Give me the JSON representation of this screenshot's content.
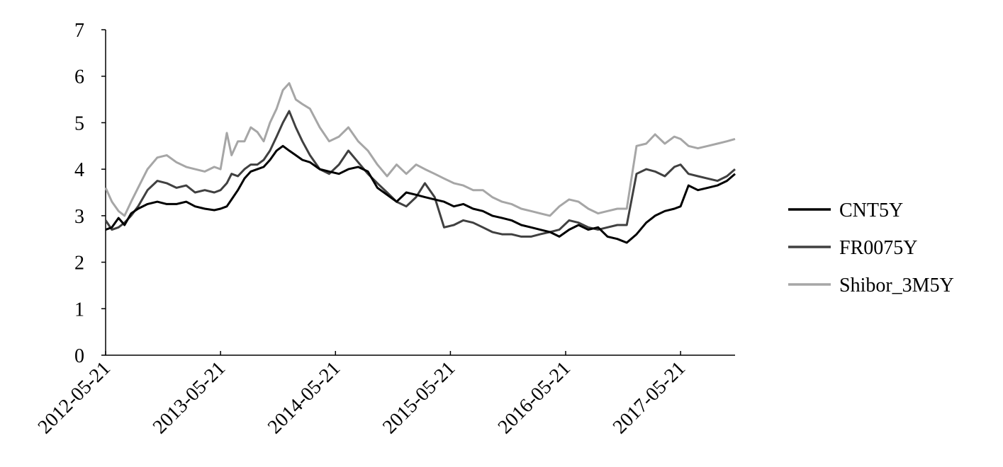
{
  "chart_data": {
    "type": "line",
    "title": "",
    "xlabel": "",
    "ylabel": "",
    "ylim": [
      0,
      7
    ],
    "yticks": [
      0,
      1,
      2,
      3,
      4,
      5,
      6,
      7
    ],
    "xlim": [
      "2012-05-21",
      "2017-11-10"
    ],
    "xticks": [
      "2012-05-21",
      "2013-05-21",
      "2014-05-21",
      "2015-05-21",
      "2016-05-21",
      "2017-05-21"
    ],
    "grid": false,
    "legend": "right",
    "series": [
      {
        "name": "CNT5Y",
        "color": "#000000",
        "x": [
          "2012-05-21",
          "2012-06-10",
          "2012-07-01",
          "2012-07-20",
          "2012-08-10",
          "2012-09-01",
          "2012-10-01",
          "2012-11-01",
          "2012-12-01",
          "2013-01-01",
          "2013-02-01",
          "2013-03-01",
          "2013-04-01",
          "2013-05-01",
          "2013-05-21",
          "2013-06-10",
          "2013-06-25",
          "2013-07-15",
          "2013-08-05",
          "2013-08-25",
          "2013-09-15",
          "2013-10-05",
          "2013-10-25",
          "2013-11-15",
          "2013-12-05",
          "2013-12-25",
          "2014-01-15",
          "2014-02-05",
          "2014-03-01",
          "2014-04-01",
          "2014-05-01",
          "2014-06-01",
          "2014-07-01",
          "2014-08-01",
          "2014-09-01",
          "2014-10-01",
          "2014-11-01",
          "2014-12-01",
          "2015-01-01",
          "2015-02-01",
          "2015-03-01",
          "2015-04-01",
          "2015-05-01",
          "2015-06-01",
          "2015-07-01",
          "2015-08-01",
          "2015-09-01",
          "2015-10-01",
          "2015-11-01",
          "2015-12-01",
          "2016-01-01",
          "2016-02-01",
          "2016-03-01",
          "2016-04-01",
          "2016-05-01",
          "2016-06-01",
          "2016-07-01",
          "2016-08-01",
          "2016-09-01",
          "2016-10-01",
          "2016-11-01",
          "2016-12-01",
          "2017-01-01",
          "2017-02-01",
          "2017-03-01",
          "2017-04-01",
          "2017-05-01",
          "2017-05-21",
          "2017-06-15",
          "2017-07-15",
          "2017-08-15",
          "2017-09-15",
          "2017-10-15",
          "2017-11-10"
        ],
        "values": [
          2.7,
          2.75,
          2.95,
          2.8,
          3.05,
          3.15,
          3.25,
          3.3,
          3.25,
          3.25,
          3.3,
          3.2,
          3.15,
          3.12,
          3.15,
          3.2,
          3.35,
          3.55,
          3.8,
          3.95,
          4.0,
          4.05,
          4.2,
          4.4,
          4.5,
          4.4,
          4.3,
          4.2,
          4.15,
          4.0,
          3.95,
          3.9,
          4.0,
          4.05,
          3.95,
          3.6,
          3.45,
          3.3,
          3.5,
          3.45,
          3.4,
          3.35,
          3.3,
          3.2,
          3.25,
          3.15,
          3.1,
          3.0,
          2.95,
          2.9,
          2.8,
          2.75,
          2.7,
          2.65,
          2.55,
          2.7,
          2.8,
          2.7,
          2.75,
          2.55,
          2.5,
          2.42,
          2.6,
          2.85,
          3.0,
          3.1,
          3.15,
          3.2,
          3.65,
          3.55,
          3.6,
          3.65,
          3.75,
          3.9
        ]
      },
      {
        "name": "FR0075Y",
        "color": "#404040",
        "x": [
          "2012-05-21",
          "2012-06-10",
          "2012-07-01",
          "2012-07-20",
          "2012-08-10",
          "2012-09-01",
          "2012-10-01",
          "2012-11-01",
          "2012-12-01",
          "2013-01-01",
          "2013-02-01",
          "2013-03-01",
          "2013-04-01",
          "2013-05-01",
          "2013-05-21",
          "2013-06-10",
          "2013-06-25",
          "2013-07-15",
          "2013-08-05",
          "2013-08-25",
          "2013-09-15",
          "2013-10-05",
          "2013-10-25",
          "2013-11-15",
          "2013-12-05",
          "2013-12-25",
          "2014-01-15",
          "2014-02-05",
          "2014-03-01",
          "2014-04-01",
          "2014-05-01",
          "2014-06-01",
          "2014-07-01",
          "2014-08-01",
          "2014-09-01",
          "2014-10-01",
          "2014-11-01",
          "2014-12-01",
          "2015-01-01",
          "2015-02-01",
          "2015-03-01",
          "2015-04-01",
          "2015-05-01",
          "2015-06-01",
          "2015-07-01",
          "2015-08-01",
          "2015-09-01",
          "2015-10-01",
          "2015-11-01",
          "2015-12-01",
          "2016-01-01",
          "2016-02-01",
          "2016-03-01",
          "2016-04-01",
          "2016-05-01",
          "2016-06-01",
          "2016-07-01",
          "2016-08-01",
          "2016-09-01",
          "2016-10-01",
          "2016-11-01",
          "2016-12-01",
          "2017-01-01",
          "2017-02-01",
          "2017-03-01",
          "2017-04-01",
          "2017-05-01",
          "2017-05-21",
          "2017-06-15",
          "2017-07-15",
          "2017-08-15",
          "2017-09-15",
          "2017-10-15",
          "2017-11-10"
        ],
        "values": [
          2.9,
          2.7,
          2.75,
          2.85,
          3.0,
          3.2,
          3.55,
          3.75,
          3.7,
          3.6,
          3.65,
          3.5,
          3.55,
          3.5,
          3.55,
          3.7,
          3.9,
          3.85,
          4.0,
          4.1,
          4.1,
          4.2,
          4.4,
          4.7,
          5.0,
          5.25,
          4.9,
          4.6,
          4.3,
          4.0,
          3.9,
          4.1,
          4.4,
          4.15,
          3.9,
          3.7,
          3.5,
          3.3,
          3.2,
          3.4,
          3.7,
          3.4,
          2.75,
          2.8,
          2.9,
          2.85,
          2.75,
          2.65,
          2.6,
          2.6,
          2.55,
          2.55,
          2.6,
          2.65,
          2.7,
          2.9,
          2.85,
          2.75,
          2.7,
          2.75,
          2.8,
          2.8,
          3.9,
          4.0,
          3.95,
          3.85,
          4.05,
          4.1,
          3.9,
          3.85,
          3.8,
          3.75,
          3.85,
          4.0
        ]
      },
      {
        "name": "Shibor_3M5Y",
        "color": "#a6a6a6",
        "x": [
          "2012-05-21",
          "2012-06-10",
          "2012-07-01",
          "2012-07-20",
          "2012-08-10",
          "2012-09-01",
          "2012-10-01",
          "2012-11-01",
          "2012-12-01",
          "2013-01-01",
          "2013-02-01",
          "2013-03-01",
          "2013-04-01",
          "2013-05-01",
          "2013-05-21",
          "2013-06-10",
          "2013-06-25",
          "2013-07-15",
          "2013-08-05",
          "2013-08-25",
          "2013-09-15",
          "2013-10-05",
          "2013-10-25",
          "2013-11-15",
          "2013-12-05",
          "2013-12-25",
          "2014-01-15",
          "2014-02-05",
          "2014-03-01",
          "2014-04-01",
          "2014-05-01",
          "2014-06-01",
          "2014-07-01",
          "2014-08-01",
          "2014-09-01",
          "2014-10-01",
          "2014-11-01",
          "2014-12-01",
          "2015-01-01",
          "2015-02-01",
          "2015-03-01",
          "2015-04-01",
          "2015-05-01",
          "2015-06-01",
          "2015-07-01",
          "2015-08-01",
          "2015-09-01",
          "2015-10-01",
          "2015-11-01",
          "2015-12-01",
          "2016-01-01",
          "2016-02-01",
          "2016-03-01",
          "2016-04-01",
          "2016-05-01",
          "2016-06-01",
          "2016-07-01",
          "2016-08-01",
          "2016-09-01",
          "2016-10-01",
          "2016-11-01",
          "2016-12-01",
          "2017-01-01",
          "2017-02-01",
          "2017-03-01",
          "2017-04-01",
          "2017-05-01",
          "2017-05-21",
          "2017-06-15",
          "2017-07-15",
          "2017-08-15",
          "2017-09-15",
          "2017-10-15",
          "2017-11-10"
        ],
        "values": [
          3.6,
          3.3,
          3.1,
          3.0,
          3.3,
          3.6,
          4.0,
          4.25,
          4.3,
          4.15,
          4.05,
          4.0,
          3.95,
          4.05,
          4.0,
          4.78,
          4.3,
          4.6,
          4.6,
          4.9,
          4.8,
          4.6,
          5.0,
          5.3,
          5.7,
          5.85,
          5.5,
          5.4,
          5.3,
          4.9,
          4.6,
          4.7,
          4.9,
          4.6,
          4.4,
          4.1,
          3.85,
          4.1,
          3.9,
          4.1,
          4.0,
          3.9,
          3.8,
          3.7,
          3.65,
          3.55,
          3.55,
          3.4,
          3.3,
          3.25,
          3.15,
          3.1,
          3.05,
          3.0,
          3.2,
          3.35,
          3.3,
          3.15,
          3.05,
          3.1,
          3.15,
          3.15,
          4.5,
          4.55,
          4.75,
          4.55,
          4.7,
          4.65,
          4.5,
          4.45,
          4.5,
          4.55,
          4.6,
          4.65
        ]
      }
    ]
  }
}
